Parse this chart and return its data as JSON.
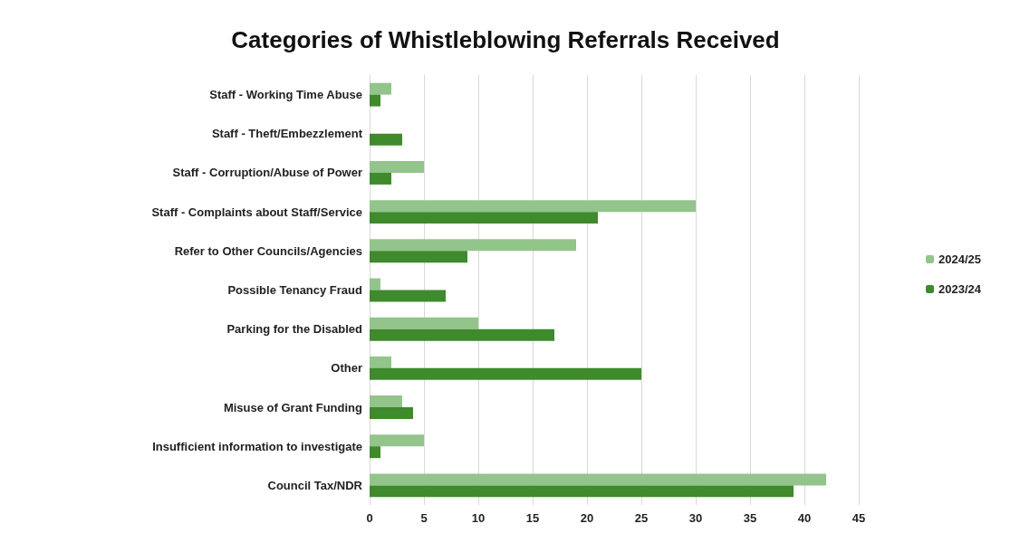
{
  "chart_data": {
    "type": "bar",
    "orientation": "horizontal",
    "title": "Categories of Whistleblowing Referrals Received",
    "categories": [
      "Staff - Working Time Abuse",
      "Staff - Theft/Embezzlement",
      "Staff - Corruption/Abuse of Power",
      "Staff - Complaints about Staff/Service",
      "Refer to Other Councils/Agencies",
      "Possible Tenancy Fraud",
      "Parking for the Disabled",
      "Other",
      "Misuse of Grant Funding",
      "Insufficient information to investigate",
      "Council Tax/NDR"
    ],
    "series": [
      {
        "name": "2024/25",
        "color": "#93c48b",
        "values": [
          2,
          0,
          5,
          30,
          19,
          1,
          10,
          2,
          3,
          5,
          42
        ]
      },
      {
        "name": "2023/24",
        "color": "#3e8a2c",
        "values": [
          1,
          3,
          2,
          21,
          9,
          7,
          17,
          25,
          4,
          1,
          39
        ]
      }
    ],
    "xlim": [
      0,
      45
    ],
    "xticks": [
      0,
      5,
      10,
      15,
      20,
      25,
      30,
      35,
      40,
      45
    ],
    "grid": "x",
    "legend": "right"
  }
}
